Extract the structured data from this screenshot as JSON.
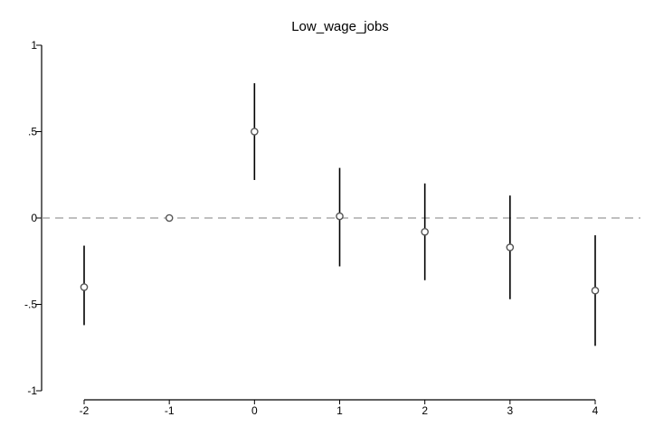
{
  "chart_data": {
    "type": "scatter",
    "title": "Low_wage_jobs",
    "xlabel": "",
    "ylabel": "",
    "x_ticks": [
      "-2",
      "-1",
      "0",
      "1",
      "2",
      "3",
      "4"
    ],
    "y_ticks": [
      "1",
      ".5",
      "0",
      "-.5",
      "-1"
    ],
    "ylim": [
      -1,
      1
    ],
    "xlim": [
      -2,
      4
    ],
    "reference_line": 0,
    "grid": false,
    "points": [
      {
        "x": -2,
        "y": -0.4,
        "lo": -0.62,
        "hi": -0.16
      },
      {
        "x": -1,
        "y": 0.0,
        "lo": 0.0,
        "hi": 0.0
      },
      {
        "x": 0,
        "y": 0.5,
        "lo": 0.22,
        "hi": 0.78
      },
      {
        "x": 1,
        "y": 0.01,
        "lo": -0.28,
        "hi": 0.29
      },
      {
        "x": 2,
        "y": -0.08,
        "lo": -0.36,
        "hi": 0.2
      },
      {
        "x": 3,
        "y": -0.17,
        "lo": -0.47,
        "hi": 0.13
      },
      {
        "x": 4,
        "y": -0.42,
        "lo": -0.74,
        "hi": -0.1
      }
    ]
  }
}
